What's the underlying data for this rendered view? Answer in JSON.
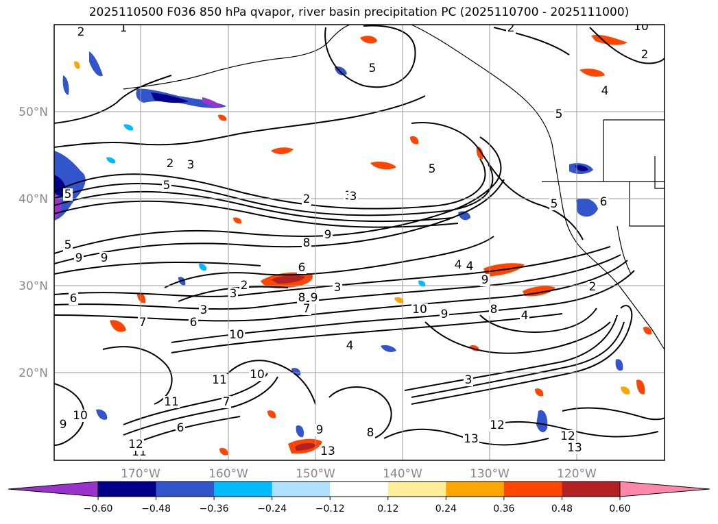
{
  "title": "2025110500 F036 850 hPa qvapor, river basin precipitation PC (2025110700 - 2025111000)",
  "latitude_labels": [
    "50°N",
    "40°N",
    "30°N",
    "20°N"
  ],
  "longitude_labels": [
    "170°W",
    "160°W",
    "150°W",
    "140°W",
    "130°W",
    "120°W"
  ],
  "colorbar": {
    "extend": "both",
    "colors": {
      "under": "#9933cc",
      "bins": [
        "#00008b",
        "#3355cc",
        "#00bbff",
        "#aee0ff",
        "#ffffff",
        "#ffee99",
        "#ffa500",
        "#ff4500",
        "#b22222"
      ],
      "over": "#ff88aa"
    },
    "ticks": [
      "−0.60",
      "−0.48",
      "−0.36",
      "−0.24",
      "−0.12",
      "0.12",
      "0.24",
      "0.36",
      "0.48",
      "0.60"
    ]
  },
  "contour_labels": [
    "2",
    "1",
    "2",
    "2",
    "10",
    "5",
    "2",
    "4",
    "5",
    "3",
    "3",
    "5",
    "5",
    "2",
    "3",
    "4",
    "5",
    "9",
    "8",
    "9",
    "9",
    "5",
    "4",
    "3",
    "6",
    "2",
    "3",
    "8",
    "9",
    "3",
    "9",
    "6",
    "7",
    "10",
    "9",
    "8",
    "4",
    "7",
    "6",
    "10",
    "4",
    "3",
    "11",
    "10",
    "11",
    "11",
    "9",
    "7",
    "6",
    "10",
    "8",
    "9",
    "12",
    "13",
    "13",
    "12",
    "12",
    "13",
    "6",
    "5",
    "2"
  ],
  "legend_icons": [
    "colorbar-arrow-left-icon",
    "colorbar-arrow-right-icon"
  ]
}
